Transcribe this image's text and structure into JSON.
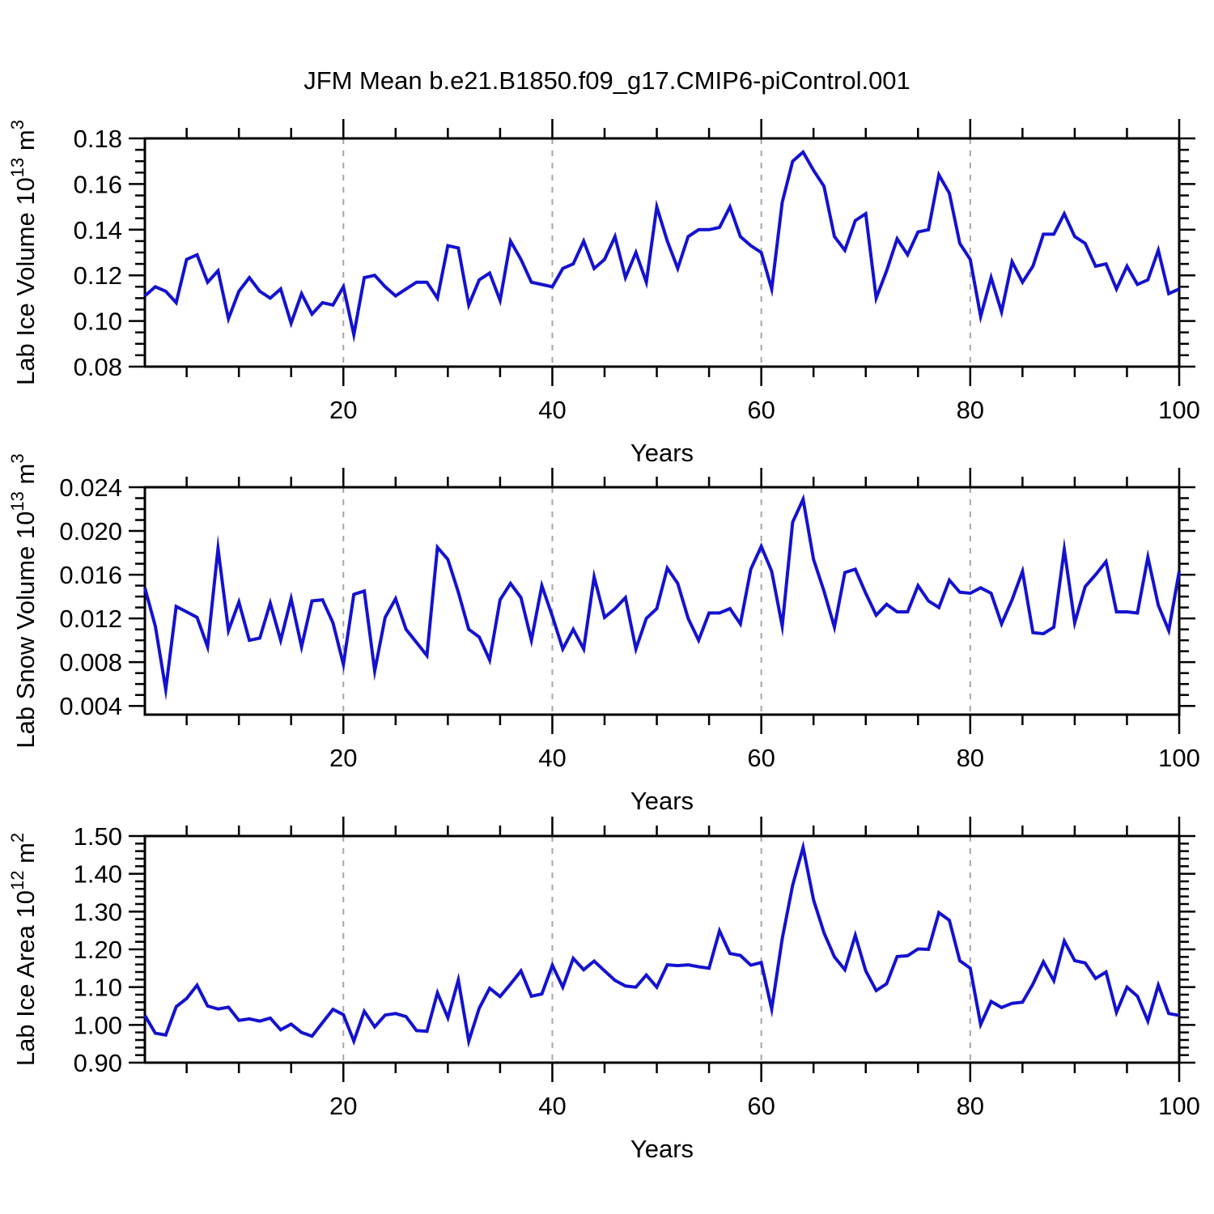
{
  "title": "JFM Mean b.e21.B1850.f09_g17.CMIP6-piControl.001",
  "colors": {
    "line": "#1412cf",
    "grid": "#a6a6a6",
    "axis": "#000000",
    "background": "#ffffff"
  },
  "chart_data": [
    {
      "type": "line",
      "id": "lab-ice-volume",
      "ylabel": "Lab Ice Volume 10^13 m^3",
      "ylabel_parts": [
        {
          "t": "Lab Ice Volume 10"
        },
        {
          "t": "13",
          "sup": true
        },
        {
          "t": " m"
        },
        {
          "t": "3",
          "sup": true
        }
      ],
      "xlabel": "Years",
      "x_range": [
        1,
        100
      ],
      "ylim": [
        0.08,
        0.18
      ],
      "yticks": [
        0.08,
        0.1,
        0.12,
        0.14,
        0.16,
        0.18
      ],
      "ytick_labels": [
        "0.08",
        "0.10",
        "0.12",
        "0.14",
        "0.16",
        "0.18"
      ],
      "y_minor_step": 0.005,
      "xticks": [
        20,
        40,
        60,
        80,
        100
      ],
      "xtick_labels": [
        "20",
        "40",
        "60",
        "80",
        "100"
      ],
      "x_minor_step": 5,
      "grid_x": [
        20,
        40,
        60,
        80
      ],
      "values": [
        0.111,
        0.115,
        0.113,
        0.108,
        0.127,
        0.129,
        0.117,
        0.122,
        0.101,
        0.113,
        0.119,
        0.113,
        0.11,
        0.114,
        0.099,
        0.112,
        0.103,
        0.108,
        0.107,
        0.115,
        0.094,
        0.119,
        0.12,
        0.115,
        0.111,
        0.114,
        0.117,
        0.117,
        0.11,
        0.133,
        0.132,
        0.107,
        0.118,
        0.121,
        0.109,
        0.135,
        0.127,
        0.117,
        0.116,
        0.115,
        0.123,
        0.125,
        0.135,
        0.123,
        0.127,
        0.137,
        0.119,
        0.13,
        0.117,
        0.15,
        0.135,
        0.123,
        0.137,
        0.14,
        0.14,
        0.141,
        0.15,
        0.137,
        0.133,
        0.13,
        0.114,
        0.152,
        0.17,
        0.174,
        0.166,
        0.159,
        0.137,
        0.131,
        0.144,
        0.147,
        0.11,
        0.122,
        0.136,
        0.129,
        0.139,
        0.14,
        0.164,
        0.156,
        0.134,
        0.127,
        0.102,
        0.119,
        0.104,
        0.126,
        0.117,
        0.124,
        0.138,
        0.138,
        0.147,
        0.137,
        0.134,
        0.124,
        0.125,
        0.114,
        0.124,
        0.116,
        0.118,
        0.131,
        0.112,
        0.114
      ]
    },
    {
      "type": "line",
      "id": "lab-snow-volume",
      "ylabel": "Lab Snow Volume 10^13 m^3",
      "ylabel_parts": [
        {
          "t": "Lab Snow Volume 10"
        },
        {
          "t": "13",
          "sup": true
        },
        {
          "t": " m"
        },
        {
          "t": "3",
          "sup": true
        }
      ],
      "xlabel": "Years",
      "x_range": [
        1,
        100
      ],
      "ylim": [
        0.0032,
        0.024
      ],
      "yticks": [
        0.004,
        0.008,
        0.012,
        0.016,
        0.02,
        0.024
      ],
      "ytick_labels": [
        "0.004",
        "0.008",
        "0.012",
        "0.016",
        "0.020",
        "0.024"
      ],
      "y_minor_step": 0.001,
      "xticks": [
        20,
        40,
        60,
        80,
        100
      ],
      "xtick_labels": [
        "20",
        "40",
        "60",
        "80",
        "100"
      ],
      "x_minor_step": 5,
      "grid_x": [
        20,
        40,
        60,
        80
      ],
      "values": [
        0.0148,
        0.0113,
        0.0055,
        0.0131,
        0.0126,
        0.0121,
        0.0094,
        0.0184,
        0.0109,
        0.0135,
        0.01,
        0.0102,
        0.0134,
        0.01,
        0.0138,
        0.0094,
        0.0136,
        0.0137,
        0.0116,
        0.0078,
        0.0142,
        0.0145,
        0.0072,
        0.0121,
        0.0138,
        0.011,
        0.0098,
        0.0086,
        0.0185,
        0.0174,
        0.0144,
        0.011,
        0.0103,
        0.0082,
        0.0137,
        0.0152,
        0.0139,
        0.01,
        0.015,
        0.0122,
        0.0092,
        0.011,
        0.0092,
        0.0158,
        0.0121,
        0.0129,
        0.0139,
        0.0092,
        0.012,
        0.0129,
        0.0166,
        0.0152,
        0.012,
        0.01,
        0.0125,
        0.0125,
        0.0129,
        0.0115,
        0.0165,
        0.0186,
        0.0163,
        0.0113,
        0.0208,
        0.0229,
        0.0174,
        0.0145,
        0.0112,
        0.0162,
        0.0165,
        0.0143,
        0.0123,
        0.0133,
        0.0126,
        0.0126,
        0.015,
        0.0136,
        0.013,
        0.0155,
        0.0144,
        0.0143,
        0.0148,
        0.0143,
        0.0115,
        0.0137,
        0.0163,
        0.0107,
        0.0106,
        0.0112,
        0.0183,
        0.0116,
        0.0149,
        0.016,
        0.0172,
        0.0126,
        0.0126,
        0.0125,
        0.0176,
        0.0132,
        0.0109,
        0.0163
      ]
    },
    {
      "type": "line",
      "id": "lab-ice-area",
      "ylabel": "Lab Ice Area 10^12 m^2",
      "ylabel_parts": [
        {
          "t": "Lab Ice Area 10"
        },
        {
          "t": "12",
          "sup": true
        },
        {
          "t": " m"
        },
        {
          "t": "2",
          "sup": true
        }
      ],
      "xlabel": "Years",
      "x_range": [
        1,
        100
      ],
      "ylim": [
        0.9,
        1.5
      ],
      "yticks": [
        0.9,
        1.0,
        1.1,
        1.2,
        1.3,
        1.4,
        1.5
      ],
      "ytick_labels": [
        "0.90",
        "1.00",
        "1.10",
        "1.20",
        "1.30",
        "1.40",
        "1.50"
      ],
      "y_minor_step": 0.02,
      "xticks": [
        20,
        40,
        60,
        80,
        100
      ],
      "xtick_labels": [
        "20",
        "40",
        "60",
        "80",
        "100"
      ],
      "x_minor_step": 5,
      "grid_x": [
        20,
        40,
        60,
        80
      ],
      "values": [
        1.025,
        0.978,
        0.973,
        1.048,
        1.07,
        1.105,
        1.05,
        1.042,
        1.047,
        1.012,
        1.016,
        1.01,
        1.018,
        0.987,
        1.002,
        0.98,
        0.97,
        1.006,
        1.041,
        1.027,
        0.957,
        1.036,
        0.995,
        1.026,
        1.03,
        1.022,
        0.985,
        0.983,
        1.085,
        1.019,
        1.119,
        0.957,
        1.044,
        1.097,
        1.075,
        1.108,
        1.143,
        1.076,
        1.082,
        1.158,
        1.1,
        1.176,
        1.146,
        1.169,
        1.143,
        1.118,
        1.103,
        1.1,
        1.132,
        1.1,
        1.159,
        1.157,
        1.159,
        1.154,
        1.15,
        1.249,
        1.189,
        1.184,
        1.158,
        1.165,
        1.042,
        1.228,
        1.37,
        1.47,
        1.331,
        1.244,
        1.18,
        1.146,
        1.237,
        1.143,
        1.091,
        1.109,
        1.181,
        1.183,
        1.201,
        1.2,
        1.297,
        1.277,
        1.17,
        1.15,
        1.001,
        1.062,
        1.046,
        1.057,
        1.06,
        1.108,
        1.167,
        1.117,
        1.222,
        1.17,
        1.164,
        1.123,
        1.14,
        1.033,
        1.1,
        1.076,
        1.01,
        1.105,
        1.03,
        1.025
      ]
    }
  ]
}
